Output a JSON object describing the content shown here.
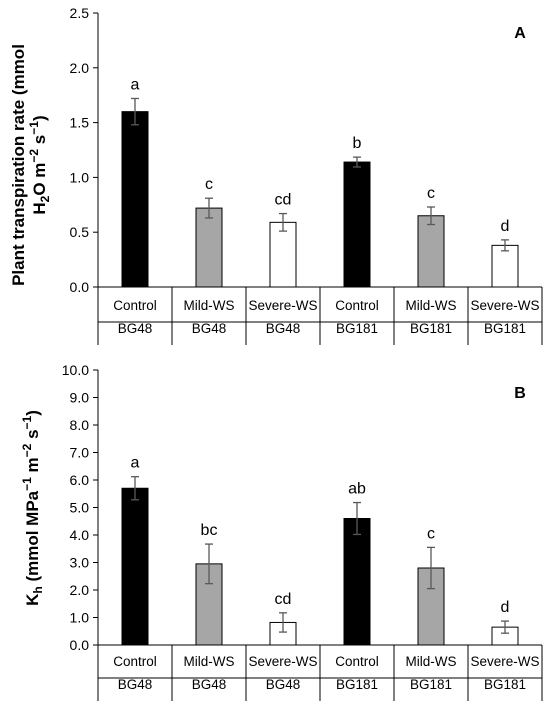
{
  "chart_data": [
    {
      "type": "bar",
      "panel_label": "A",
      "ylabel_line1": "Plant transpiration rate (mmol",
      "ylabel_line2_base": "H",
      "ylabel_line2_sub": "2",
      "ylabel_line2_mid": "O m",
      "ylabel_line2_sup1": "−2",
      "ylabel_line2_s": " s",
      "ylabel_line2_sup2": "−1",
      "ylabel_line2_end": ")",
      "ylim": [
        0,
        2.5
      ],
      "yticks": [
        "0.0",
        "0.5",
        "1.0",
        "1.5",
        "2.0",
        "2.5"
      ],
      "ytick_values": [
        0,
        0.5,
        1.0,
        1.5,
        2.0,
        2.5
      ],
      "categories": [
        "Control",
        "Mild-WS",
        "Severe-WS",
        "Control",
        "Mild-WS",
        "Severe-WS"
      ],
      "genotypes": [
        "BG48",
        "BG48",
        "BG48",
        "BG181",
        "BG181",
        "BG181"
      ],
      "values": [
        1.6,
        0.72,
        0.59,
        1.14,
        0.65,
        0.38
      ],
      "errors": [
        0.12,
        0.09,
        0.08,
        0.045,
        0.08,
        0.05
      ],
      "letters": [
        "a",
        "c",
        "cd",
        "b",
        "c",
        "d"
      ],
      "fills": [
        "#000000",
        "#a6a6a6",
        "#ffffff",
        "#000000",
        "#a6a6a6",
        "#ffffff"
      ],
      "grid": false
    },
    {
      "type": "bar",
      "panel_label": "B",
      "ylabel_base": "K",
      "ylabel_sub": "h",
      "ylabel_mid": " (mmol MPa",
      "ylabel_sup1": "−1",
      "ylabel_m": " m",
      "ylabel_sup2": "−2",
      "ylabel_s": " s",
      "ylabel_sup3": "−1",
      "ylabel_end": ")",
      "ylim": [
        0,
        10
      ],
      "yticks": [
        "0.0",
        "1.0",
        "2.0",
        "3.0",
        "4.0",
        "5.0",
        "6.0",
        "7.0",
        "8.0",
        "9.0",
        "10.0"
      ],
      "ytick_values": [
        0,
        1,
        2,
        3,
        4,
        5,
        6,
        7,
        8,
        9,
        10
      ],
      "categories": [
        "Control",
        "Mild-WS",
        "Severe-WS",
        "Control",
        "Mild-WS",
        "Severe-WS"
      ],
      "genotypes": [
        "BG48",
        "BG48",
        "BG48",
        "BG181",
        "BG181",
        "BG181"
      ],
      "values": [
        5.7,
        2.95,
        0.82,
        4.6,
        2.8,
        0.65
      ],
      "errors": [
        0.42,
        0.72,
        0.35,
        0.58,
        0.75,
        0.22
      ],
      "letters": [
        "a",
        "bc",
        "cd",
        "ab",
        "c",
        "d"
      ],
      "fills": [
        "#000000",
        "#a6a6a6",
        "#ffffff",
        "#000000",
        "#a6a6a6",
        "#ffffff"
      ],
      "grid": false
    }
  ]
}
